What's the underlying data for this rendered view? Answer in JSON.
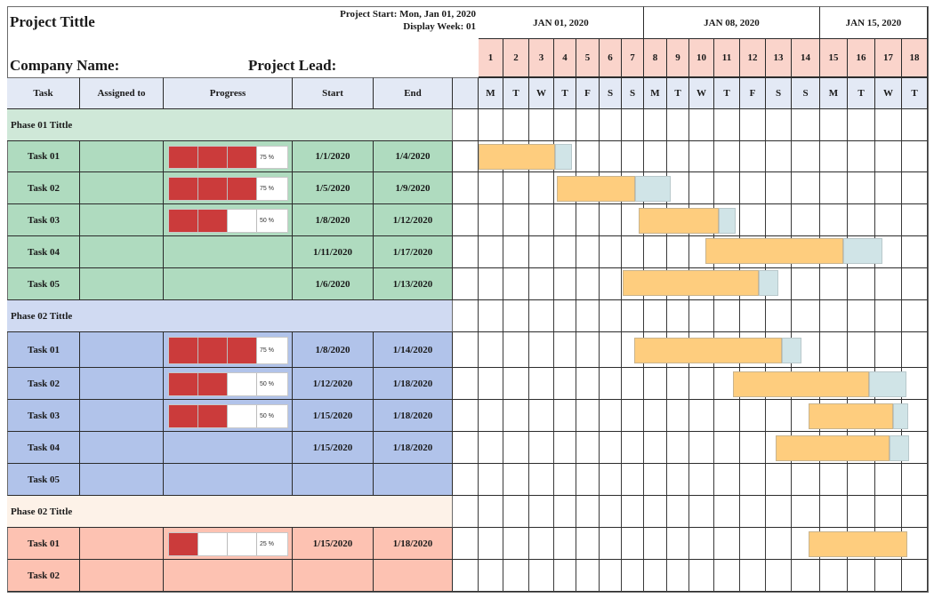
{
  "header": {
    "title": "Project Tittle",
    "project_start": "Project Start: Mon, Jan 01, 2020",
    "display_week": "Display Week: 01",
    "company_label": "Company Name:",
    "lead_label": "Project Lead:"
  },
  "columns": {
    "task": "Task",
    "assigned": "Assigned to",
    "progress": "Progress",
    "start": "Start",
    "end": "End"
  },
  "weeks": [
    "JAN 01, 2020",
    "JAN 08, 2020",
    "JAN 15, 2020"
  ],
  "days": [
    "1",
    "2",
    "3",
    "4",
    "5",
    "6",
    "7",
    "8",
    "9",
    "10",
    "11",
    "12",
    "13",
    "14",
    "15",
    "16",
    "17",
    "18"
  ],
  "day_names": [
    "M",
    "T",
    "W",
    "T",
    "F",
    "S",
    "S",
    "M",
    "T",
    "W",
    "T",
    "F",
    "S",
    "S",
    "M",
    "T",
    "W",
    "T"
  ],
  "colors": {
    "phase1_header": "#cfe8d8",
    "phase1_row": "#afdbbf",
    "phase2_header": "#d0daf2",
    "phase2_row": "#b1c3ea",
    "phase3_header": "#fdf2e8",
    "phase3_row": "#fdc2b2",
    "progress_fill": "#cb3b3b",
    "bar_done": "#fecd7e",
    "bar_remaining": "#d0e4e7"
  },
  "phases": [
    {
      "title": "Phase 01 Tittle",
      "tasks": [
        {
          "name": "Task 01",
          "assigned": "",
          "progress": "75 %",
          "progress_segments": 3,
          "start": "1/1/2020",
          "end": "1/4/2020"
        },
        {
          "name": "Task 02",
          "assigned": "",
          "progress": "75 %",
          "progress_segments": 3,
          "start": "1/5/2020",
          "end": "1/9/2020"
        },
        {
          "name": "Task 03",
          "assigned": "",
          "progress": "50 %",
          "progress_segments": 2,
          "start": "1/8/2020",
          "end": "1/12/2020"
        },
        {
          "name": "Task 04",
          "assigned": "",
          "progress": "",
          "start": "1/11/2020",
          "end": "1/17/2020"
        },
        {
          "name": "Task 05",
          "assigned": "",
          "progress": "",
          "start": "1/6/2020",
          "end": "1/13/2020"
        }
      ]
    },
    {
      "title": "Phase 02 Tittle",
      "tasks": [
        {
          "name": "Task 01",
          "assigned": "",
          "progress": "75 %",
          "progress_segments": 3,
          "start": "1/8/2020",
          "end": "1/14/2020"
        },
        {
          "name": "Task 02",
          "assigned": "",
          "progress": "50 %",
          "progress_segments": 2,
          "start": "1/12/2020",
          "end": "1/18/2020"
        },
        {
          "name": "Task 03",
          "assigned": "",
          "progress": "50 %",
          "progress_segments": 2,
          "start": "1/15/2020",
          "end": "1/18/2020"
        },
        {
          "name": "Task 04",
          "assigned": "",
          "progress": "",
          "start": "1/15/2020",
          "end": "1/18/2020"
        },
        {
          "name": "Task 05",
          "assigned": "",
          "progress": "",
          "start": "",
          "end": ""
        }
      ]
    },
    {
      "title": "Phase 02 Tittle",
      "tasks": [
        {
          "name": "Task 01",
          "assigned": "",
          "progress": "25 %",
          "progress_segments": 1,
          "start": "1/15/2020",
          "end": "1/18/2020"
        },
        {
          "name": "Task 02",
          "assigned": "",
          "progress": "",
          "start": "",
          "end": ""
        }
      ]
    }
  ]
}
